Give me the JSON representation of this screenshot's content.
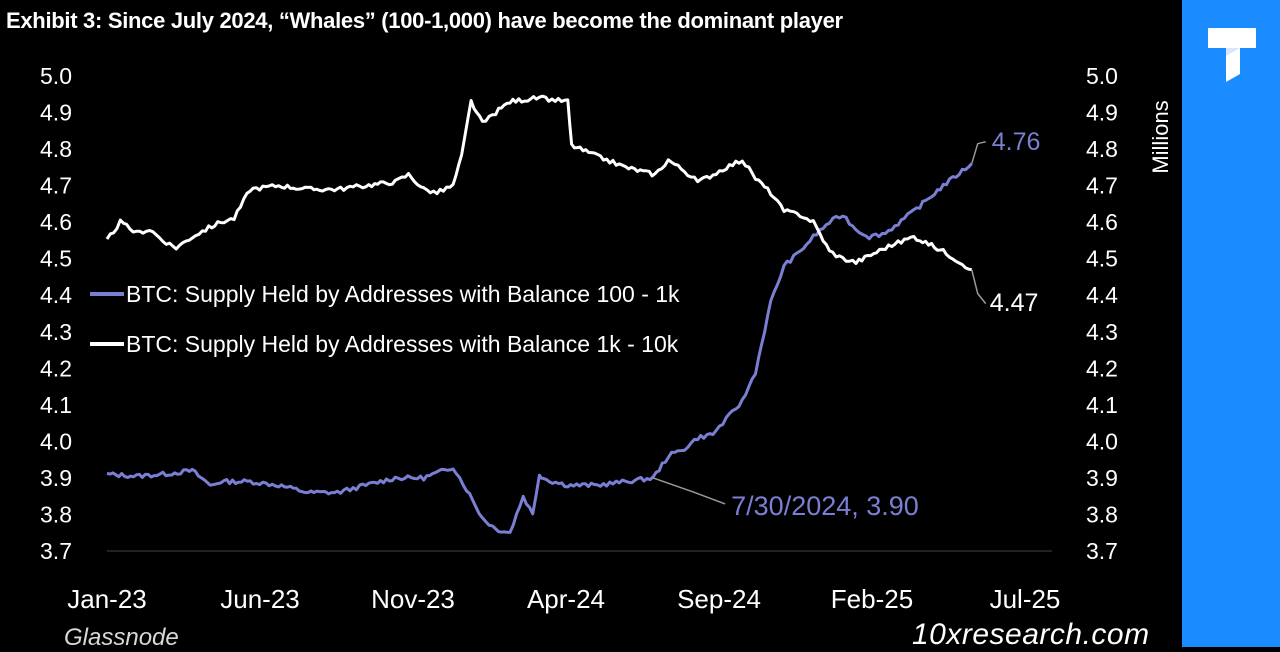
{
  "header": {
    "title": "Exhibit 3: Since July 2024, “Whales” (100-1,000) have become the dominant player"
  },
  "footer": {
    "source": "Glassnode",
    "watermark": "10xresearch.com"
  },
  "brand": {
    "icon": "10x-logo-icon",
    "panel_color": "#1a8cff"
  },
  "chart_data": {
    "type": "line",
    "title": "Exhibit 3: Since July 2024, “Whales” (100-1,000) have become the dominant player",
    "xlabel": "",
    "ylabel": "",
    "y2label": "Millions",
    "x_ticks": [
      "Jan-23",
      "Jun-23",
      "Nov-23",
      "Apr-24",
      "Sep-24",
      "Feb-25",
      "Jul-25"
    ],
    "y_ticks": [
      "5.0",
      "4.9",
      "4.8",
      "4.7",
      "4.6",
      "4.5",
      "4.4",
      "4.3",
      "4.2",
      "4.1",
      "4.0",
      "3.9",
      "3.8",
      "3.7"
    ],
    "y2_ticks": [
      "5.0",
      "4.9",
      "4.8",
      "4.7",
      "4.6",
      "4.5",
      "4.4",
      "4.3",
      "4.2",
      "4.1",
      "4.0",
      "3.9",
      "3.8",
      "3.7"
    ],
    "xlim": [
      "2023-01-01",
      "2025-07-15"
    ],
    "ylim": [
      3.7,
      5.0
    ],
    "grid": false,
    "legend": "left-middle",
    "series": [
      {
        "name": "BTC: Supply Held by Addresses with Balance 100 - 1k",
        "color": "#7b7fd4",
        "x": [
          "2023-01-01",
          "2023-02-01",
          "2023-03-01",
          "2023-04-01",
          "2023-04-20",
          "2023-05-01",
          "2023-06-01",
          "2023-07-01",
          "2023-08-01",
          "2023-09-01",
          "2023-10-01",
          "2023-11-01",
          "2023-12-01",
          "2024-01-01",
          "2024-01-15",
          "2024-02-01",
          "2024-02-15",
          "2024-03-01",
          "2024-03-15",
          "2024-03-25",
          "2024-04-01",
          "2024-04-05",
          "2024-04-15",
          "2024-05-01",
          "2024-06-01",
          "2024-07-01",
          "2024-07-30",
          "2024-08-15",
          "2024-09-01",
          "2024-09-15",
          "2024-10-01",
          "2024-10-15",
          "2024-11-01",
          "2024-11-15",
          "2024-12-01",
          "2024-12-15",
          "2025-01-01",
          "2025-01-15",
          "2025-02-01",
          "2025-02-15",
          "2025-03-01",
          "2025-03-15",
          "2025-04-01",
          "2025-05-01",
          "2025-06-01",
          "2025-07-01"
        ],
        "values": [
          3.91,
          3.905,
          3.91,
          3.92,
          3.88,
          3.89,
          3.89,
          3.88,
          3.86,
          3.86,
          3.88,
          3.9,
          3.9,
          3.93,
          3.87,
          3.79,
          3.76,
          3.75,
          3.85,
          3.8,
          3.91,
          3.9,
          3.89,
          3.88,
          3.88,
          3.89,
          3.9,
          3.96,
          3.98,
          4.01,
          4.02,
          4.06,
          4.11,
          4.19,
          4.38,
          4.48,
          4.52,
          4.56,
          4.6,
          4.62,
          4.58,
          4.56,
          4.57,
          4.63,
          4.7,
          4.76
        ]
      },
      {
        "name": "BTC: Supply Held by Addresses with Balance 1k - 10k",
        "color": "#ffffff",
        "x": [
          "2023-01-01",
          "2023-01-15",
          "2023-02-01",
          "2023-02-15",
          "2023-03-01",
          "2023-03-15",
          "2023-04-01",
          "2023-04-15",
          "2023-05-01",
          "2023-05-15",
          "2023-06-01",
          "2023-07-01",
          "2023-08-01",
          "2023-09-01",
          "2023-10-01",
          "2023-11-01",
          "2023-11-15",
          "2023-12-01",
          "2023-12-15",
          "2024-01-01",
          "2024-01-10",
          "2024-01-20",
          "2024-02-01",
          "2024-02-15",
          "2024-03-01",
          "2024-04-01",
          "2024-05-01",
          "2024-05-05",
          "2024-06-01",
          "2024-07-01",
          "2024-08-01",
          "2024-08-15",
          "2024-09-01",
          "2024-09-15",
          "2024-10-01",
          "2024-10-15",
          "2024-11-01",
          "2024-11-15",
          "2024-12-01",
          "2024-12-15",
          "2025-01-01",
          "2025-01-15",
          "2025-02-01",
          "2025-02-15",
          "2025-03-01",
          "2025-04-01",
          "2025-05-01",
          "2025-06-01",
          "2025-07-01"
        ],
        "values": [
          4.55,
          4.6,
          4.57,
          4.58,
          4.55,
          4.53,
          4.56,
          4.58,
          4.6,
          4.61,
          4.69,
          4.7,
          4.69,
          4.69,
          4.7,
          4.71,
          4.73,
          4.69,
          4.68,
          4.7,
          4.78,
          4.93,
          4.87,
          4.9,
          4.93,
          4.94,
          4.93,
          4.81,
          4.78,
          4.75,
          4.73,
          4.77,
          4.74,
          4.71,
          4.73,
          4.75,
          4.77,
          4.72,
          4.68,
          4.63,
          4.62,
          4.6,
          4.52,
          4.5,
          4.49,
          4.53,
          4.56,
          4.52,
          4.47
        ]
      }
    ],
    "annotations": [
      {
        "label": "4.76",
        "series": 0
      },
      {
        "label": "4.47",
        "series": 1
      },
      {
        "label": "7/30/2024, 3.90",
        "series": 0
      }
    ]
  }
}
